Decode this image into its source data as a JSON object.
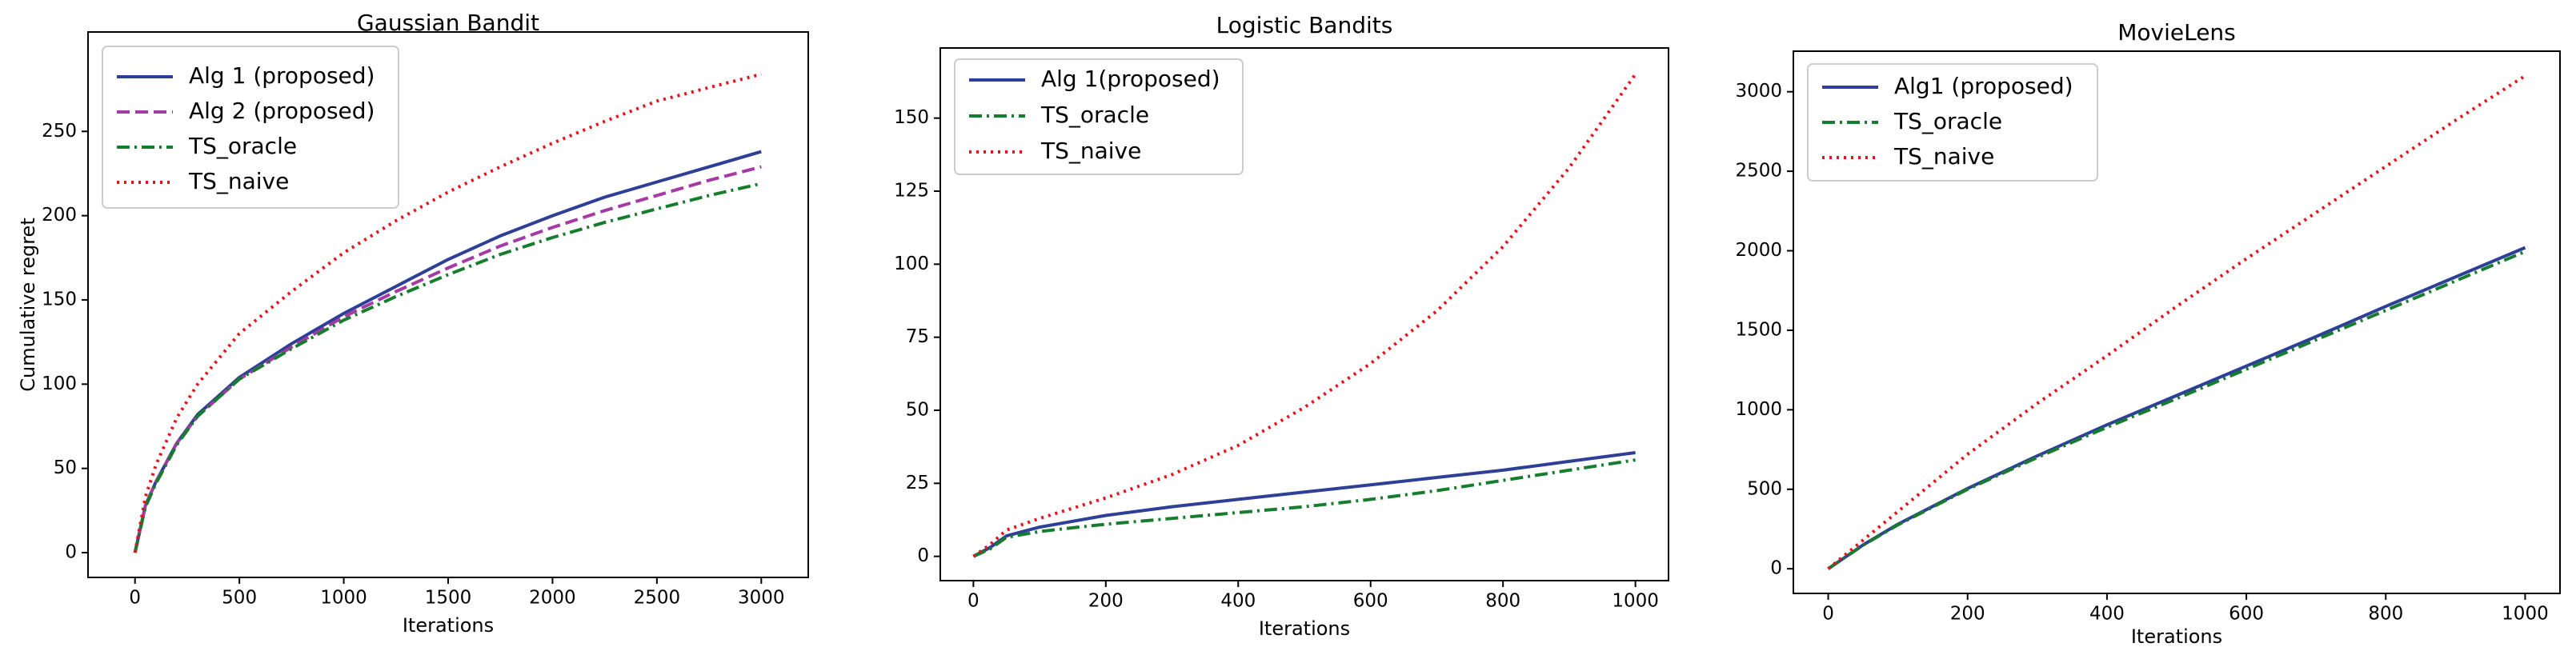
{
  "colors": {
    "alg1": "#2e3f97",
    "alg2": "#a53aa5",
    "oracle": "#177d2e",
    "naive": "#e8121c",
    "axis": "#000000"
  },
  "chart_data": [
    {
      "type": "line",
      "title": "Gaussian Bandit",
      "xlabel": "Iterations",
      "ylabel": "Cumulative regret",
      "xlim": [
        -225,
        3225
      ],
      "ylim": [
        -14.7,
        309
      ],
      "xticks": [
        0,
        500,
        1000,
        1500,
        2000,
        2500,
        3000
      ],
      "xtick_labels": [
        "0",
        "500",
        "1000",
        "1500",
        "2000",
        "2500",
        "3000"
      ],
      "yticks": [
        0,
        50,
        100,
        150,
        200,
        250
      ],
      "ytick_labels": [
        "0",
        "50",
        "100",
        "150",
        "200",
        "250"
      ],
      "legend_position": "upper-left",
      "series": [
        {
          "name": "Alg 1 (proposed)",
          "style": "solid",
          "color_key": "alg1",
          "x": [
            0,
            50,
            100,
            200,
            300,
            500,
            750,
            1000,
            1250,
            1500,
            1750,
            2000,
            2250,
            2500,
            2750,
            3000
          ],
          "y": [
            0,
            28,
            42,
            65,
            82,
            104,
            124,
            142,
            158,
            174,
            188,
            200,
            211,
            220,
            229,
            238
          ]
        },
        {
          "name": "Alg 2 (proposed)",
          "style": "dashed",
          "color_key": "alg2",
          "x": [
            0,
            50,
            100,
            200,
            300,
            500,
            750,
            1000,
            1250,
            1500,
            1750,
            2000,
            2250,
            2500,
            2750,
            3000
          ],
          "y": [
            0,
            28,
            42,
            65,
            81,
            103,
            122,
            140,
            155,
            169,
            182,
            193,
            203,
            212,
            221,
            229
          ]
        },
        {
          "name": "TS_oracle",
          "style": "dashdot",
          "color_key": "oracle",
          "x": [
            0,
            50,
            100,
            200,
            300,
            500,
            750,
            1000,
            1250,
            1500,
            1750,
            2000,
            2250,
            2500,
            2750,
            3000
          ],
          "y": [
            0,
            27,
            41,
            64,
            81,
            103,
            121,
            138,
            152,
            165,
            177,
            187,
            196,
            204,
            212,
            219
          ]
        },
        {
          "name": "TS_naive",
          "style": "dotted",
          "color_key": "naive",
          "x": [
            0,
            50,
            100,
            200,
            300,
            500,
            750,
            1000,
            1250,
            1500,
            1750,
            2000,
            2250,
            2500,
            2750,
            3000
          ],
          "y": [
            0,
            33,
            52,
            80,
            100,
            130,
            155,
            178,
            197,
            214,
            229,
            243,
            256,
            268,
            276,
            284
          ]
        }
      ]
    },
    {
      "type": "line",
      "title": "Logistic Bandits",
      "xlabel": "Iterations",
      "ylabel": "",
      "xlim": [
        -50,
        1050
      ],
      "ylim": [
        -8.3,
        174
      ],
      "xticks": [
        0,
        200,
        400,
        600,
        800,
        1000
      ],
      "xtick_labels": [
        "0",
        "200",
        "400",
        "600",
        "800",
        "1000"
      ],
      "yticks": [
        0,
        25,
        50,
        75,
        100,
        125,
        150
      ],
      "ytick_labels": [
        "0",
        "25",
        "50",
        "75",
        "100",
        "125",
        "150"
      ],
      "legend_position": "upper-left",
      "series": [
        {
          "name": "Alg 1(proposed)",
          "style": "solid",
          "color_key": "alg1",
          "x": [
            0,
            25,
            50,
            100,
            150,
            200,
            300,
            400,
            500,
            600,
            700,
            800,
            900,
            1000
          ],
          "y": [
            0,
            3,
            7,
            10,
            12,
            14,
            17,
            19.5,
            22,
            24.5,
            27,
            29.5,
            32.5,
            35.5
          ]
        },
        {
          "name": "TS_oracle",
          "style": "dashdot",
          "color_key": "oracle",
          "x": [
            0,
            25,
            50,
            100,
            150,
            200,
            300,
            400,
            500,
            600,
            700,
            800,
            900,
            1000
          ],
          "y": [
            0,
            2.5,
            6.5,
            8.5,
            9.8,
            11,
            13,
            15,
            17,
            19.5,
            22.5,
            26,
            29.5,
            33
          ]
        },
        {
          "name": "TS_naive",
          "style": "dotted",
          "color_key": "naive",
          "x": [
            0,
            25,
            50,
            100,
            150,
            200,
            300,
            400,
            500,
            600,
            700,
            800,
            900,
            1000
          ],
          "y": [
            0,
            4,
            9,
            13,
            16.5,
            20,
            28,
            38,
            51,
            66,
            84,
            106,
            133,
            165
          ]
        }
      ]
    },
    {
      "type": "line",
      "title": "MovieLens",
      "xlabel": "Iterations",
      "ylabel": "",
      "xlim": [
        -50,
        1050
      ],
      "ylim": [
        -155,
        3255
      ],
      "xticks": [
        0,
        200,
        400,
        600,
        800,
        1000
      ],
      "xtick_labels": [
        "0",
        "200",
        "400",
        "600",
        "800",
        "1000"
      ],
      "yticks": [
        0,
        500,
        1000,
        1500,
        2000,
        2500,
        3000
      ],
      "ytick_labels": [
        "0",
        "500",
        "1000",
        "1500",
        "2000",
        "2500",
        "3000"
      ],
      "legend_position": "upper-left",
      "series": [
        {
          "name": "Alg1 (proposed)",
          "style": "solid",
          "color_key": "alg1",
          "x": [
            0,
            50,
            100,
            200,
            300,
            400,
            500,
            600,
            700,
            800,
            900,
            1000
          ],
          "y": [
            0,
            150,
            280,
            505,
            710,
            905,
            1090,
            1275,
            1460,
            1650,
            1835,
            2020
          ]
        },
        {
          "name": "TS_oracle",
          "style": "dashdot",
          "color_key": "oracle",
          "x": [
            0,
            50,
            100,
            200,
            300,
            400,
            500,
            600,
            700,
            800,
            900,
            1000
          ],
          "y": [
            0,
            148,
            276,
            500,
            700,
            890,
            1070,
            1255,
            1440,
            1625,
            1810,
            1995
          ]
        },
        {
          "name": "TS_naive",
          "style": "dotted",
          "color_key": "naive",
          "x": [
            0,
            50,
            100,
            200,
            300,
            400,
            500,
            600,
            700,
            800,
            900,
            1000
          ],
          "y": [
            0,
            180,
            360,
            720,
            1040,
            1340,
            1650,
            1950,
            2240,
            2530,
            2820,
            3100
          ]
        }
      ]
    }
  ]
}
